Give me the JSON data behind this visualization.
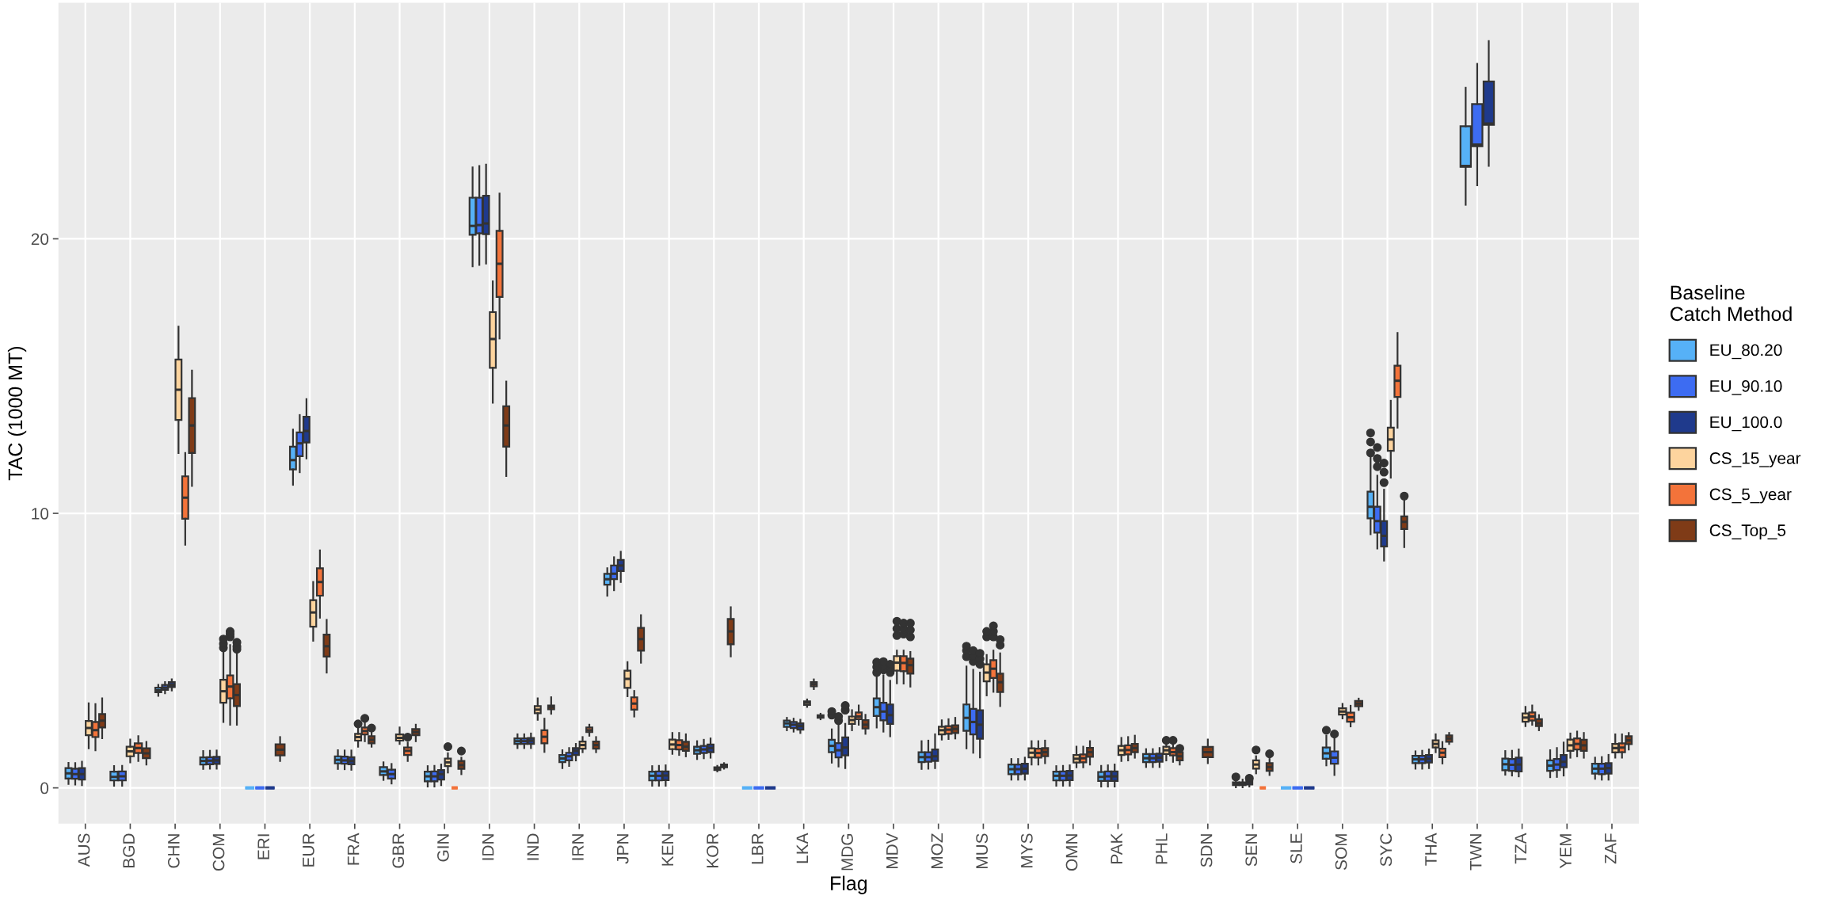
{
  "chart_data": {
    "type": "box",
    "xlabel": "Flag",
    "ylabel": "TAC (1000 MT)",
    "legend_title": "Baseline\nCatch Method",
    "legend": "right",
    "grid": true,
    "ylim": [
      -1.3,
      28.6
    ],
    "yticks": [
      0,
      10,
      20
    ],
    "categories": [
      "AUS",
      "BGD",
      "CHN",
      "COM",
      "ERI",
      "EUR",
      "FRA",
      "GBR",
      "GIN",
      "IDN",
      "IND",
      "IRN",
      "JPN",
      "KEN",
      "KOR",
      "LBR",
      "LKA",
      "MDG",
      "MDV",
      "MOZ",
      "MUS",
      "MYS",
      "OMN",
      "PAK",
      "PHL",
      "SDN",
      "SEN",
      "SLE",
      "SOM",
      "SYC",
      "THA",
      "TWN",
      "TZA",
      "YEM",
      "ZAF"
    ],
    "series": [
      {
        "name": "EU_80.20",
        "color": "#56b1f7",
        "boxes": [
          {
            "low": 0.14,
            "q1": 0.34,
            "median": 0.53,
            "q3": 0.72,
            "high": 0.91
          },
          {
            "low": 0.08,
            "q1": 0.27,
            "median": 0.4,
            "q3": 0.59,
            "high": 0.79
          },
          {
            "low": 3.35,
            "q1": 3.48,
            "median": 3.55,
            "q3": 3.65,
            "high": 3.75
          },
          {
            "low": 0.69,
            "q1": 0.85,
            "median": 0.98,
            "q3": 1.11,
            "high": 1.34
          },
          {
            "low": 0,
            "q1": 0,
            "median": 0,
            "q3": 0,
            "high": 0
          },
          {
            "low": 11.04,
            "q1": 11.6,
            "median": 11.94,
            "q3": 12.43,
            "high": 13.05
          },
          {
            "low": 0.69,
            "q1": 0.89,
            "median": 1.02,
            "q3": 1.15,
            "high": 1.37
          },
          {
            "low": 0.29,
            "q1": 0.47,
            "median": 0.6,
            "q3": 0.76,
            "high": 0.93
          },
          {
            "low": 0.05,
            "q1": 0.24,
            "median": 0.42,
            "q3": 0.59,
            "high": 0.79
          },
          {
            "low": 19.0,
            "q1": 20.15,
            "median": 20.47,
            "q3": 21.5,
            "high": 22.6
          },
          {
            "low": 1.45,
            "q1": 1.6,
            "median": 1.7,
            "q3": 1.8,
            "high": 1.95
          },
          {
            "low": 0.72,
            "q1": 0.94,
            "median": 1.07,
            "q3": 1.2,
            "high": 1.37
          },
          {
            "low": 7.0,
            "q1": 7.4,
            "median": 7.6,
            "q3": 7.8,
            "high": 8.0
          },
          {
            "low": 0.08,
            "q1": 0.27,
            "median": 0.44,
            "q3": 0.59,
            "high": 0.79
          },
          {
            "low": 1.05,
            "q1": 1.24,
            "median": 1.37,
            "q3": 1.5,
            "high": 1.7
          },
          {
            "low": 0,
            "q1": 0,
            "median": 0,
            "q3": 0,
            "high": 0
          },
          {
            "low": 2.1,
            "q1": 2.22,
            "median": 2.35,
            "q3": 2.45,
            "high": 2.55
          },
          {
            "low": 0.92,
            "q1": 1.3,
            "median": 1.53,
            "q3": 1.75,
            "high": 2.13,
            "outliers": [
              2.65,
              2.78
            ]
          },
          {
            "low": 2.2,
            "q1": 2.62,
            "median": 2.94,
            "q3": 3.26,
            "high": 4.13,
            "outliers": [
              4.2,
              4.4,
              4.58
            ]
          },
          {
            "low": 0.69,
            "q1": 0.94,
            "median": 1.12,
            "q3": 1.3,
            "high": 1.7
          },
          {
            "low": 1.44,
            "q1": 2.08,
            "median": 2.55,
            "q3": 3.04,
            "high": 4.42,
            "outliers": [
              4.78,
              5.0,
              5.16
            ]
          },
          {
            "low": 0.3,
            "q1": 0.5,
            "median": 0.68,
            "q3": 0.85,
            "high": 1.05
          },
          {
            "low": 0.08,
            "q1": 0.27,
            "median": 0.44,
            "q3": 0.59,
            "high": 0.79
          },
          {
            "low": 0.05,
            "q1": 0.25,
            "median": 0.4,
            "q3": 0.58,
            "high": 0.8
          },
          {
            "low": 0.76,
            "q1": 0.94,
            "median": 1.08,
            "q3": 1.23,
            "high": 1.41
          },
          null,
          {
            "low": 0.02,
            "q1": 0.1,
            "median": 0.15,
            "q3": 0.2,
            "high": 0.3,
            "outliers": [
              0.4
            ]
          },
          {
            "low": 0,
            "q1": 0,
            "median": 0,
            "q3": 0,
            "high": 0
          },
          {
            "low": 0.82,
            "q1": 1.06,
            "median": 1.26,
            "q3": 1.47,
            "high": 1.9,
            "outliers": [
              2.1
            ]
          },
          {
            "low": 9.24,
            "q1": 9.82,
            "median": 10.24,
            "q3": 10.79,
            "high": 12.15,
            "outliers": [
              12.2,
              12.6,
              12.93
            ]
          },
          {
            "low": 0.7,
            "q1": 0.9,
            "median": 1.04,
            "q3": 1.17,
            "high": 1.33
          },
          {
            "low": 21.24,
            "q1": 22.62,
            "median": 22.65,
            "q3": 24.1,
            "high": 25.5
          },
          {
            "low": 0.48,
            "q1": 0.64,
            "median": 0.86,
            "q3": 1.07,
            "high": 1.34
          },
          {
            "low": 0.39,
            "q1": 0.62,
            "median": 0.81,
            "q3": 1.0,
            "high": 1.37
          },
          {
            "low": 0.33,
            "q1": 0.52,
            "median": 0.7,
            "q3": 0.88,
            "high": 1.1
          }
        ]
      },
      {
        "name": "EU_90.10",
        "color": "#3d6cf2",
        "boxes": [
          {
            "low": 0.12,
            "q1": 0.33,
            "median": 0.5,
            "q3": 0.7,
            "high": 0.9
          },
          {
            "low": 0.08,
            "q1": 0.27,
            "median": 0.42,
            "q3": 0.6,
            "high": 0.8
          },
          {
            "low": 3.45,
            "q1": 3.57,
            "median": 3.65,
            "q3": 3.75,
            "high": 3.85
          },
          {
            "low": 0.7,
            "q1": 0.86,
            "median": 0.99,
            "q3": 1.12,
            "high": 1.35
          },
          {
            "low": 0,
            "q1": 0,
            "median": 0,
            "q3": 0,
            "high": 0
          },
          {
            "low": 11.5,
            "q1": 12.08,
            "median": 12.55,
            "q3": 12.95,
            "high": 13.58
          },
          {
            "low": 0.68,
            "q1": 0.88,
            "median": 1.0,
            "q3": 1.14,
            "high": 1.36
          },
          {
            "low": 0.16,
            "q1": 0.34,
            "median": 0.5,
            "q3": 0.66,
            "high": 0.87
          },
          {
            "low": 0.05,
            "q1": 0.24,
            "median": 0.42,
            "q3": 0.6,
            "high": 0.8
          },
          {
            "low": 19.05,
            "q1": 20.2,
            "median": 20.5,
            "q3": 21.5,
            "high": 22.65
          },
          {
            "low": 1.45,
            "q1": 1.6,
            "median": 1.7,
            "q3": 1.8,
            "high": 1.95
          },
          {
            "low": 0.8,
            "q1": 1.0,
            "median": 1.15,
            "q3": 1.28,
            "high": 1.45
          },
          {
            "low": 7.2,
            "q1": 7.6,
            "median": 7.8,
            "q3": 8.1,
            "high": 8.4
          },
          {
            "low": 0.08,
            "q1": 0.27,
            "median": 0.44,
            "q3": 0.6,
            "high": 0.8
          },
          {
            "low": 1.08,
            "q1": 1.27,
            "median": 1.4,
            "q3": 1.53,
            "high": 1.75
          },
          {
            "low": 0,
            "q1": 0,
            "median": 0,
            "q3": 0,
            "high": 0
          },
          {
            "low": 2.05,
            "q1": 2.18,
            "median": 2.3,
            "q3": 2.4,
            "high": 2.52
          },
          {
            "low": 0.78,
            "q1": 1.11,
            "median": 1.37,
            "q3": 1.63,
            "high": 2.3,
            "outliers": [
              2.45,
              2.6
            ]
          },
          {
            "low": 2.05,
            "q1": 2.46,
            "median": 2.78,
            "q3": 3.1,
            "high": 4.1,
            "outliers": [
              4.3,
              4.45,
              4.6
            ]
          },
          {
            "low": 0.7,
            "q1": 0.95,
            "median": 1.12,
            "q3": 1.3,
            "high": 1.72
          },
          {
            "low": 1.28,
            "q1": 1.95,
            "median": 2.4,
            "q3": 2.88,
            "high": 4.3,
            "outliers": [
              4.6,
              4.8,
              5.0
            ]
          },
          {
            "low": 0.3,
            "q1": 0.5,
            "median": 0.68,
            "q3": 0.85,
            "high": 1.05
          },
          {
            "low": 0.08,
            "q1": 0.27,
            "median": 0.44,
            "q3": 0.6,
            "high": 0.8
          },
          {
            "low": 0.05,
            "q1": 0.25,
            "median": 0.42,
            "q3": 0.6,
            "high": 0.82
          },
          {
            "low": 0.76,
            "q1": 0.94,
            "median": 1.08,
            "q3": 1.23,
            "high": 1.41
          },
          null,
          {
            "low": 0.02,
            "q1": 0.1,
            "median": 0.15,
            "q3": 0.2,
            "high": 0.3
          },
          {
            "low": 0,
            "q1": 0,
            "median": 0,
            "q3": 0,
            "high": 0
          },
          {
            "low": 0.47,
            "q1": 0.88,
            "median": 1.1,
            "q3": 1.33,
            "high": 1.8,
            "outliers": [
              1.96
            ]
          },
          {
            "low": 8.72,
            "q1": 9.3,
            "median": 9.72,
            "q3": 10.24,
            "high": 11.37,
            "outliers": [
              11.7,
              12.0,
              12.4
            ]
          },
          {
            "low": 0.7,
            "q1": 0.9,
            "median": 1.04,
            "q3": 1.17,
            "high": 1.35
          },
          {
            "low": 21.95,
            "q1": 23.37,
            "median": 23.43,
            "q3": 24.91,
            "high": 26.37
          },
          {
            "low": 0.45,
            "q1": 0.62,
            "median": 0.84,
            "q3": 1.05,
            "high": 1.35
          },
          {
            "low": 0.4,
            "q1": 0.65,
            "median": 0.85,
            "q3": 1.05,
            "high": 1.45
          },
          {
            "low": 0.3,
            "q1": 0.5,
            "median": 0.7,
            "q3": 0.88,
            "high": 1.12
          }
        ]
      },
      {
        "name": "EU_100.0",
        "color": "#1f3a8c",
        "boxes": [
          {
            "low": 0.1,
            "q1": 0.3,
            "median": 0.5,
            "q3": 0.72,
            "high": 0.95
          },
          null,
          {
            "low": 3.55,
            "q1": 3.67,
            "median": 3.75,
            "q3": 3.85,
            "high": 3.95
          },
          {
            "low": 0.7,
            "q1": 0.87,
            "median": 1.0,
            "q3": 1.13,
            "high": 1.36
          },
          {
            "low": 0,
            "q1": 0,
            "median": 0,
            "q3": 0,
            "high": 0
          },
          {
            "low": 12.0,
            "q1": 12.58,
            "median": 13.0,
            "q3": 13.52,
            "high": 14.16
          },
          {
            "low": 0.66,
            "q1": 0.86,
            "median": 0.98,
            "q3": 1.12,
            "high": 1.36
          },
          null,
          {
            "low": 0.1,
            "q1": 0.3,
            "median": 0.5,
            "q3": 0.65,
            "high": 0.85
          },
          {
            "low": 19.1,
            "q1": 20.17,
            "median": 20.56,
            "q3": 21.57,
            "high": 22.7
          },
          {
            "low": 1.45,
            "q1": 1.6,
            "median": 1.72,
            "q3": 1.82,
            "high": 1.98
          },
          {
            "low": 1.0,
            "q1": 1.2,
            "median": 1.35,
            "q3": 1.45,
            "high": 1.6
          },
          {
            "low": 7.5,
            "q1": 7.9,
            "median": 8.1,
            "q3": 8.3,
            "high": 8.6
          },
          {
            "low": 0.08,
            "q1": 0.28,
            "median": 0.45,
            "q3": 0.6,
            "high": 0.82
          },
          {
            "low": 1.1,
            "q1": 1.3,
            "median": 1.45,
            "q3": 1.58,
            "high": 1.8
          },
          {
            "low": 0,
            "q1": 0,
            "median": 0,
            "q3": 0,
            "high": 0
          },
          {
            "low": 2.0,
            "q1": 2.12,
            "median": 2.25,
            "q3": 2.35,
            "high": 2.48
          },
          {
            "low": 0.72,
            "q1": 1.18,
            "median": 1.47,
            "q3": 1.84,
            "high": 2.33,
            "outliers": [
              2.83,
              3.0
            ]
          },
          {
            "low": 1.88,
            "q1": 2.33,
            "median": 2.65,
            "q3": 3.04,
            "high": 3.9,
            "outliers": [
              4.2,
              4.35,
              4.5
            ]
          },
          {
            "low": 0.72,
            "q1": 0.98,
            "median": 1.15,
            "q3": 1.4,
            "high": 1.95
          },
          {
            "low": 1.11,
            "q1": 1.79,
            "median": 2.3,
            "q3": 2.83,
            "high": 4.2,
            "outliers": [
              4.5,
              4.7,
              4.9
            ]
          },
          {
            "low": 0.3,
            "q1": 0.52,
            "median": 0.7,
            "q3": 0.88,
            "high": 1.1
          },
          {
            "low": 0.08,
            "q1": 0.28,
            "median": 0.45,
            "q3": 0.62,
            "high": 0.82
          },
          {
            "low": 0.05,
            "q1": 0.25,
            "median": 0.42,
            "q3": 0.6,
            "high": 0.85
          },
          {
            "low": 0.76,
            "q1": 0.95,
            "median": 1.1,
            "q3": 1.25,
            "high": 1.45
          },
          null,
          {
            "low": 0.05,
            "q1": 0.12,
            "median": 0.2,
            "q3": 0.25,
            "high": 0.3,
            "outliers": [
              0.35
            ]
          },
          {
            "low": 0,
            "q1": 0,
            "median": 0,
            "q3": 0,
            "high": 0
          },
          null,
          {
            "low": 8.28,
            "q1": 8.79,
            "median": 9.18,
            "q3": 9.72,
            "high": 10.86,
            "outliers": [
              11.12,
              11.5,
              11.83
            ]
          },
          {
            "low": 0.72,
            "q1": 0.92,
            "median": 1.06,
            "q3": 1.2,
            "high": 1.4
          },
          {
            "low": 22.66,
            "q1": 24.15,
            "median": 24.2,
            "q3": 25.73,
            "high": 27.2
          },
          {
            "low": 0.42,
            "q1": 0.6,
            "median": 0.85,
            "q3": 1.1,
            "high": 1.4
          },
          {
            "low": 0.45,
            "q1": 0.75,
            "median": 0.95,
            "q3": 1.2,
            "high": 1.65
          },
          {
            "low": 0.3,
            "q1": 0.52,
            "median": 0.72,
            "q3": 0.9,
            "high": 1.2
          }
        ]
      },
      {
        "name": "CS_15_year",
        "color": "#fdd49e",
        "boxes": [
          {
            "low": 1.44,
            "q1": 1.92,
            "median": 2.18,
            "q3": 2.44,
            "high": 3.08
          },
          {
            "low": 0.93,
            "q1": 1.15,
            "median": 1.33,
            "q3": 1.5,
            "high": 1.76
          },
          {
            "low": 12.2,
            "q1": 13.4,
            "median": 14.5,
            "q3": 15.6,
            "high": 16.8
          },
          {
            "low": 2.4,
            "q1": 3.1,
            "median": 3.52,
            "q3": 3.94,
            "high": 5.05,
            "outliers": [
              5.1,
              5.25,
              5.42
            ]
          },
          null,
          {
            "low": 5.36,
            "q1": 5.87,
            "median": 6.39,
            "q3": 6.84,
            "high": 7.5
          },
          {
            "low": 1.5,
            "q1": 1.72,
            "median": 1.85,
            "q3": 1.97,
            "high": 2.2,
            "outliers": [
              2.33
            ]
          },
          {
            "low": 1.6,
            "q1": 1.72,
            "median": 1.82,
            "q3": 1.95,
            "high": 2.2
          },
          {
            "low": 0.56,
            "q1": 0.79,
            "median": 0.93,
            "q3": 1.07,
            "high": 1.26,
            "outliers": [
              1.5
            ]
          },
          {
            "low": 14.03,
            "q1": 15.3,
            "median": 16.35,
            "q3": 17.33,
            "high": 18.45
          },
          {
            "low": 2.48,
            "q1": 2.72,
            "median": 2.85,
            "q3": 2.98,
            "high": 3.26
          },
          {
            "low": 1.3,
            "q1": 1.43,
            "median": 1.56,
            "q3": 1.69,
            "high": 1.85
          },
          {
            "low": 3.34,
            "q1": 3.64,
            "median": 3.97,
            "q3": 4.27,
            "high": 4.58
          },
          {
            "low": 1.24,
            "q1": 1.41,
            "median": 1.58,
            "q3": 1.76,
            "high": 2.0
          },
          {
            "low": 0.6,
            "q1": 0.65,
            "median": 0.7,
            "q3": 0.75,
            "high": 0.8
          },
          null,
          {
            "low": 2.95,
            "q1": 3.02,
            "median": 3.1,
            "q3": 3.15,
            "high": 3.22
          },
          {
            "low": 2.1,
            "q1": 2.33,
            "median": 2.47,
            "q3": 2.6,
            "high": 2.83
          },
          {
            "low": 3.81,
            "q1": 4.27,
            "median": 4.56,
            "q3": 4.8,
            "high": 5.0,
            "outliers": [
              5.55,
              5.8,
              6.07
            ]
          },
          {
            "low": 1.76,
            "q1": 1.95,
            "median": 2.1,
            "q3": 2.23,
            "high": 2.46
          },
          {
            "low": 3.37,
            "q1": 3.88,
            "median": 4.2,
            "q3": 4.5,
            "high": 4.84,
            "outliers": [
              5.5,
              5.7
            ]
          },
          {
            "low": 0.85,
            "q1": 1.11,
            "median": 1.28,
            "q3": 1.44,
            "high": 1.7
          },
          {
            "low": 0.75,
            "q1": 0.92,
            "median": 1.06,
            "q3": 1.2,
            "high": 1.5
          },
          {
            "low": 0.98,
            "q1": 1.2,
            "median": 1.37,
            "q3": 1.53,
            "high": 1.82
          },
          {
            "low": 1.0,
            "q1": 1.23,
            "median": 1.37,
            "q3": 1.5,
            "high": 1.65,
            "outliers": [
              1.73
            ]
          },
          null,
          {
            "low": 0.53,
            "q1": 0.7,
            "median": 0.85,
            "q3": 1.0,
            "high": 1.15,
            "outliers": [
              1.38
            ]
          },
          null,
          {
            "low": 2.53,
            "q1": 2.67,
            "median": 2.78,
            "q3": 2.9,
            "high": 3.06
          },
          {
            "low": 11.3,
            "q1": 12.28,
            "median": 12.69,
            "q3": 13.12,
            "high": 14.1
          },
          {
            "low": 1.3,
            "q1": 1.47,
            "median": 1.6,
            "q3": 1.73,
            "high": 1.95
          },
          null,
          {
            "low": 2.25,
            "q1": 2.41,
            "median": 2.56,
            "q3": 2.71,
            "high": 2.95
          },
          {
            "low": 1.1,
            "q1": 1.35,
            "median": 1.55,
            "q3": 1.76,
            "high": 1.98
          },
          {
            "low": 1.1,
            "q1": 1.29,
            "median": 1.45,
            "q3": 1.6,
            "high": 1.95
          }
        ]
      },
      {
        "name": "CS_5_year",
        "color": "#f3733a",
        "boxes": [
          {
            "low": 1.37,
            "q1": 1.85,
            "median": 2.1,
            "q3": 2.4,
            "high": 3.05
          },
          {
            "low": 0.98,
            "q1": 1.27,
            "median": 1.45,
            "q3": 1.62,
            "high": 1.88
          },
          {
            "low": 8.86,
            "q1": 9.8,
            "median": 10.57,
            "q3": 11.35,
            "high": 12.2
          },
          {
            "low": 2.3,
            "q1": 3.26,
            "median": 3.69,
            "q3": 4.1,
            "high": 5.2,
            "outliers": [
              5.5,
              5.6,
              5.7
            ]
          },
          null,
          {
            "low": 6.2,
            "q1": 7.0,
            "median": 7.5,
            "q3": 8.0,
            "high": 8.65
          },
          {
            "low": 1.7,
            "q1": 1.95,
            "median": 2.07,
            "q3": 2.2,
            "high": 2.4,
            "outliers": [
              2.53
            ]
          },
          {
            "low": 0.98,
            "q1": 1.2,
            "median": 1.35,
            "q3": 1.47,
            "high": 1.65,
            "outliers": [
              1.85
            ]
          },
          {
            "low": 0,
            "q1": 0,
            "median": 0,
            "q3": 0,
            "high": 0
          },
          {
            "low": 16.37,
            "q1": 17.88,
            "median": 19.09,
            "q3": 20.29,
            "high": 21.65
          },
          {
            "low": 1.31,
            "q1": 1.62,
            "median": 1.86,
            "q3": 2.1,
            "high": 2.52
          },
          {
            "low": 1.9,
            "q1": 2.03,
            "median": 2.1,
            "q3": 2.2,
            "high": 2.3
          },
          {
            "low": 2.6,
            "q1": 2.85,
            "median": 3.07,
            "q3": 3.3,
            "high": 3.53
          },
          {
            "low": 1.2,
            "q1": 1.4,
            "median": 1.56,
            "q3": 1.74,
            "high": 2.0
          },
          {
            "low": 0.7,
            "q1": 0.75,
            "median": 0.8,
            "q3": 0.85,
            "high": 0.9
          },
          null,
          {
            "low": 3.6,
            "q1": 3.7,
            "median": 3.78,
            "q3": 3.85,
            "high": 3.95
          },
          {
            "low": 2.3,
            "q1": 2.5,
            "median": 2.6,
            "q3": 2.75,
            "high": 3.0
          },
          {
            "low": 3.8,
            "q1": 4.25,
            "median": 4.55,
            "q3": 4.8,
            "high": 5.0,
            "outliers": [
              5.6,
              5.8,
              6.0
            ]
          },
          {
            "low": 1.78,
            "q1": 1.97,
            "median": 2.12,
            "q3": 2.25,
            "high": 2.5
          },
          {
            "low": 3.5,
            "q1": 4.0,
            "median": 4.34,
            "q3": 4.65,
            "high": 5.0,
            "outliers": [
              5.5,
              5.7,
              5.9
            ]
          },
          {
            "low": 0.85,
            "q1": 1.1,
            "median": 1.27,
            "q3": 1.43,
            "high": 1.7
          },
          {
            "low": 0.75,
            "q1": 0.93,
            "median": 1.08,
            "q3": 1.22,
            "high": 1.5
          },
          {
            "low": 1.0,
            "q1": 1.22,
            "median": 1.38,
            "q3": 1.55,
            "high": 1.85
          },
          {
            "low": 0.95,
            "q1": 1.18,
            "median": 1.3,
            "q3": 1.45,
            "high": 1.6,
            "outliers": [
              1.73
            ]
          },
          null,
          {
            "low": 0,
            "q1": 0,
            "median": 0,
            "q3": 0,
            "high": 0
          },
          null,
          {
            "low": 2.24,
            "q1": 2.41,
            "median": 2.57,
            "q3": 2.74,
            "high": 2.99
          },
          {
            "low": 13.12,
            "q1": 14.24,
            "median": 14.83,
            "q3": 15.38,
            "high": 16.57
          },
          {
            "low": 0.89,
            "q1": 1.12,
            "median": 1.28,
            "q3": 1.43,
            "high": 1.67
          },
          null,
          {
            "low": 2.3,
            "q1": 2.45,
            "median": 2.6,
            "q3": 2.75,
            "high": 3.0
          },
          {
            "low": 1.15,
            "q1": 1.4,
            "median": 1.6,
            "q3": 1.8,
            "high": 2.05
          },
          {
            "low": 1.1,
            "q1": 1.3,
            "median": 1.47,
            "q3": 1.62,
            "high": 1.95
          }
        ]
      },
      {
        "name": "CS_Top_5",
        "color": "#7f3b17",
        "boxes": [
          {
            "low": 1.81,
            "q1": 2.2,
            "median": 2.45,
            "q3": 2.69,
            "high": 3.26
          },
          {
            "low": 0.85,
            "q1": 1.08,
            "median": 1.26,
            "q3": 1.44,
            "high": 1.67
          },
          {
            "low": 11.0,
            "q1": 12.2,
            "median": 13.2,
            "q3": 14.2,
            "high": 15.2
          },
          {
            "low": 2.3,
            "q1": 2.98,
            "median": 3.38,
            "q3": 3.78,
            "high": 5.0,
            "outliers": [
              5.05,
              5.15,
              5.3
            ]
          },
          {
            "low": 0.98,
            "q1": 1.18,
            "median": 1.39,
            "q3": 1.59,
            "high": 1.85
          },
          {
            "low": 4.2,
            "q1": 4.78,
            "median": 5.16,
            "q3": 5.58,
            "high": 6.12
          },
          {
            "low": 1.5,
            "q1": 1.62,
            "median": 1.75,
            "q3": 1.88,
            "high": 2.05,
            "outliers": [
              2.18
            ]
          },
          {
            "low": 1.7,
            "q1": 1.92,
            "median": 2.03,
            "q3": 2.14,
            "high": 2.3
          },
          {
            "low": 0.5,
            "q1": 0.69,
            "median": 0.83,
            "q3": 0.98,
            "high": 1.1,
            "outliers": [
              1.34
            ]
          },
          {
            "low": 11.36,
            "q1": 12.43,
            "median": 13.2,
            "q3": 13.9,
            "high": 14.8
          },
          {
            "low": 2.7,
            "q1": 2.86,
            "median": 2.95,
            "q3": 3.0,
            "high": 3.3
          },
          {
            "low": 1.3,
            "q1": 1.43,
            "median": 1.56,
            "q3": 1.69,
            "high": 1.85
          },
          {
            "low": 4.56,
            "q1": 5.0,
            "median": 5.42,
            "q3": 5.83,
            "high": 6.29
          },
          {
            "low": 1.15,
            "q1": 1.35,
            "median": 1.5,
            "q3": 1.68,
            "high": 1.95
          },
          {
            "low": 4.79,
            "q1": 5.23,
            "median": 5.7,
            "q3": 6.15,
            "high": 6.58
          },
          null,
          {
            "low": 2.5,
            "q1": 2.55,
            "median": 2.6,
            "q3": 2.65,
            "high": 2.7
          },
          {
            "low": 1.97,
            "q1": 2.16,
            "median": 2.3,
            "q3": 2.47,
            "high": 2.66
          },
          {
            "low": 3.69,
            "q1": 4.16,
            "median": 4.47,
            "q3": 4.71,
            "high": 4.95,
            "outliers": [
              5.5,
              5.75,
              6.0
            ]
          },
          {
            "low": 1.8,
            "q1": 2.0,
            "median": 2.15,
            "q3": 2.28,
            "high": 2.55
          },
          {
            "low": 2.98,
            "q1": 3.49,
            "median": 3.85,
            "q3": 4.16,
            "high": 4.9,
            "outliers": [
              5.2,
              5.4
            ]
          },
          {
            "low": 0.9,
            "q1": 1.15,
            "median": 1.3,
            "q3": 1.45,
            "high": 1.72
          },
          {
            "low": 0.85,
            "q1": 1.13,
            "median": 1.3,
            "q3": 1.46,
            "high": 1.7
          },
          {
            "low": 1.1,
            "q1": 1.3,
            "median": 1.45,
            "q3": 1.6,
            "high": 1.9
          },
          {
            "low": 0.85,
            "q1": 1.0,
            "median": 1.15,
            "q3": 1.3,
            "high": 1.35,
            "outliers": [
              1.44
            ]
          },
          {
            "low": 0.9,
            "q1": 1.12,
            "median": 1.3,
            "q3": 1.49,
            "high": 1.76
          },
          {
            "low": 0.47,
            "q1": 0.62,
            "median": 0.76,
            "q3": 0.9,
            "high": 1.05,
            "outliers": [
              1.24
            ]
          },
          null,
          {
            "low": 2.84,
            "q1": 2.97,
            "median": 3.07,
            "q3": 3.17,
            "high": 3.25
          },
          {
            "low": 8.77,
            "q1": 9.43,
            "median": 9.69,
            "q3": 9.89,
            "high": 10.47,
            "outliers": [
              10.63
            ]
          },
          {
            "low": 1.6,
            "q1": 1.68,
            "median": 1.8,
            "q3": 1.91,
            "high": 2.0
          },
          null,
          {
            "low": 2.1,
            "q1": 2.25,
            "median": 2.35,
            "q3": 2.5,
            "high": 2.65
          },
          {
            "low": 1.1,
            "q1": 1.35,
            "median": 1.55,
            "q3": 1.75,
            "high": 2.0
          },
          {
            "low": 1.4,
            "q1": 1.59,
            "median": 1.73,
            "q3": 1.88,
            "high": 2.0
          }
        ]
      }
    ]
  }
}
